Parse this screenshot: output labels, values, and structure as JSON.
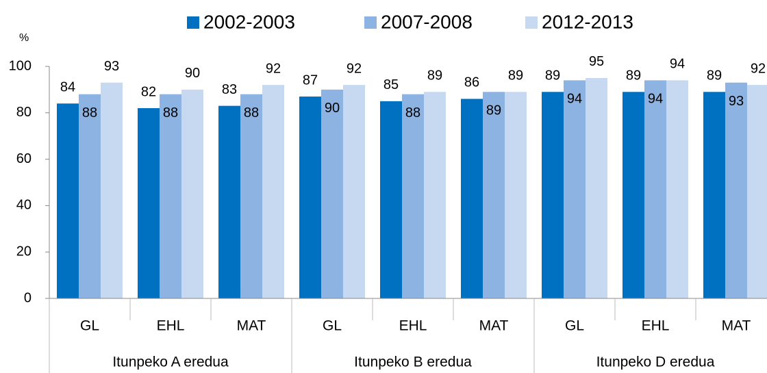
{
  "chart_data": {
    "type": "bar",
    "y_label": "%",
    "categories": [
      "GL",
      "EHL",
      "MAT",
      "GL",
      "EHL",
      "MAT",
      "GL",
      "EHL",
      "MAT"
    ],
    "groups": [
      "Itunpeko A eredua",
      "Itunpeko B eredua",
      "Itunpeko D eredua"
    ],
    "series": [
      {
        "name": "2002-2003",
        "color": "#0070c0",
        "values": [
          84,
          82,
          83,
          87,
          85,
          86,
          89,
          89,
          89
        ]
      },
      {
        "name": "2007-2008",
        "color": "#8db3e2",
        "values": [
          88,
          88,
          88,
          90,
          88,
          89,
          94,
          94,
          93
        ]
      },
      {
        "name": "2012-2013",
        "color": "#c6d9f1",
        "values": [
          93,
          90,
          92,
          92,
          89,
          89,
          95,
          94,
          92
        ]
      }
    ],
    "ylim": [
      0,
      100
    ],
    "yticks": [
      0,
      20,
      40,
      60,
      80,
      100
    ],
    "grid": false,
    "legend": "top"
  }
}
